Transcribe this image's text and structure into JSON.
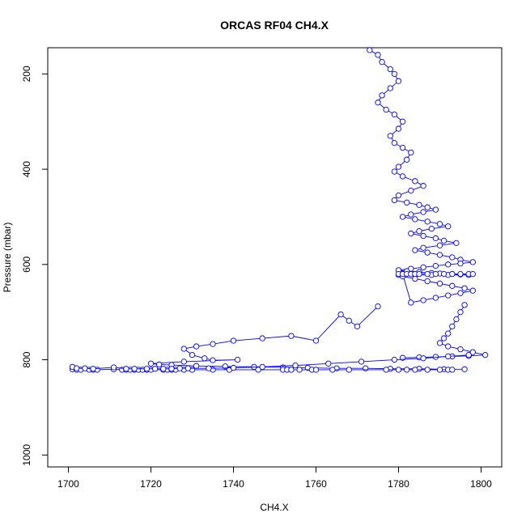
{
  "chart_data": {
    "type": "scatter",
    "title": "ORCAS RF04 CH4.X",
    "xlabel": "CH4.X",
    "ylabel": "Pressure (mbar)",
    "xlim": [
      1695,
      1805
    ],
    "ylim": [
      1025,
      145
    ],
    "y_reversed": true,
    "x_ticks": [
      1700,
      1720,
      1740,
      1760,
      1780,
      1800
    ],
    "y_ticks": [
      200,
      400,
      600,
      800,
      1000
    ],
    "x_tick_labels": [
      "1700",
      "1720",
      "1740",
      "1760",
      "1780",
      "1800"
    ],
    "y_tick_labels": [
      "200",
      "400",
      "600",
      "800",
      "1000"
    ],
    "grid": false,
    "legend": "none",
    "series_color": "#0000ff",
    "marker": "open-circle",
    "series": [
      {
        "x": [
          1773,
          1775,
          1776,
          1778,
          1779,
          1780,
          1778,
          1776,
          1775,
          1777,
          1779,
          1781,
          1780,
          1778,
          1779,
          1781,
          1783,
          1782,
          1780,
          1779,
          1781,
          1784,
          1786,
          1783,
          1780,
          1779,
          1782,
          1785,
          1787,
          1789,
          1786,
          1783,
          1781,
          1784,
          1787,
          1790,
          1792,
          1788,
          1785,
          1783,
          1786,
          1789,
          1791,
          1794,
          1790,
          1786,
          1784,
          1787,
          1790,
          1793,
          1795,
          1798,
          1795,
          1792,
          1789,
          1786,
          1783,
          1780,
          1782,
          1785,
          1788,
          1790,
          1793,
          1795,
          1797,
          1792,
          1788,
          1784,
          1780,
          1781,
          1784,
          1787,
          1790,
          1793,
          1796,
          1798,
          1795,
          1792,
          1789,
          1786,
          1783,
          1781,
          1780,
          1781,
          1782,
          1783,
          1784,
          1785,
          1787,
          1789,
          1791,
          1793,
          1795,
          1797,
          1798
        ],
        "y": [
          150,
          160,
          175,
          190,
          200,
          215,
          230,
          245,
          260,
          275,
          285,
          300,
          315,
          330,
          345,
          355,
          365,
          380,
          395,
          405,
          415,
          425,
          435,
          445,
          455,
          465,
          470,
          475,
          480,
          485,
          490,
          495,
          500,
          505,
          510,
          515,
          520,
          525,
          530,
          535,
          540,
          545,
          550,
          555,
          560,
          565,
          570,
          575,
          580,
          585,
          590,
          595,
          598,
          600,
          603,
          606,
          609,
          612,
          614,
          616,
          618,
          619,
          620,
          621,
          622,
          622,
          622,
          622,
          622,
          625,
          630,
          635,
          640,
          645,
          650,
          655,
          660,
          665,
          670,
          675,
          680,
          620,
          620,
          620,
          620,
          620,
          620,
          620,
          620,
          620,
          620,
          620,
          620,
          620,
          620
        ]
      },
      {
        "x": [
          1796,
          1795,
          1794,
          1793,
          1792,
          1791,
          1790,
          1792,
          1795,
          1798,
          1801,
          1797,
          1793,
          1789,
          1785,
          1781
        ],
        "y": [
          685,
          700,
          715,
          730,
          745,
          755,
          765,
          772,
          778,
          784,
          790,
          792,
          793,
          794,
          795,
          796
        ]
      },
      {
        "x": [
          1775,
          1770,
          1768,
          1766,
          1760,
          1754,
          1747,
          1740,
          1735,
          1731,
          1728,
          1730,
          1733,
          1735,
          1741,
          1728,
          1720,
          1722,
          1725,
          1731,
          1738,
          1745,
          1752,
          1758,
          1765,
          1772,
          1778,
          1785,
          1791,
          1796
        ],
        "y": [
          688,
          730,
          718,
          705,
          760,
          750,
          755,
          760,
          767,
          772,
          777,
          790,
          797,
          801,
          800,
          804,
          808,
          810,
          811,
          813,
          814,
          815,
          816,
          817,
          818,
          818,
          819,
          819,
          820,
          820
        ]
      },
      {
        "x": [
          1701,
          1702,
          1703,
          1705,
          1706,
          1707,
          1711,
          1713,
          1714,
          1715,
          1716,
          1717,
          1718,
          1719,
          1720,
          1723,
          1724,
          1725,
          1726,
          1728,
          1730,
          1735,
          1739,
          1746,
          1752,
          1753,
          1754,
          1756,
          1759,
          1760,
          1764,
          1768,
          1777,
          1780,
          1782,
          1784,
          1787,
          1790,
          1792,
          1793
        ],
        "y": [
          820,
          821,
          821,
          821,
          821,
          821,
          820,
          821,
          821,
          821,
          821,
          821,
          821,
          821,
          821,
          821,
          821,
          821,
          821,
          821,
          821,
          821,
          821,
          821,
          821,
          821,
          821,
          821,
          821,
          821,
          821,
          821,
          821,
          821,
          821,
          821,
          821,
          821,
          821,
          821
        ]
      },
      {
        "x": [
          1701,
          1702,
          1704,
          1706,
          1711,
          1714,
          1716,
          1719,
          1721,
          1723,
          1725,
          1727,
          1729,
          1734,
          1740,
          1747,
          1755,
          1763,
          1771,
          1779,
          1786,
          1792,
          1797
        ],
        "y": [
          815,
          818,
          818,
          819,
          816,
          819,
          819,
          819,
          819,
          819,
          819,
          818,
          818,
          818,
          817,
          815,
          812,
          808,
          804,
          800,
          797,
          793,
          790
        ]
      }
    ]
  }
}
